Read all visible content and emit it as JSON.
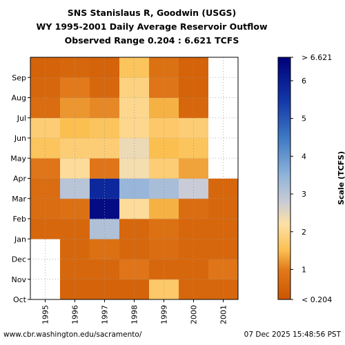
{
  "header": {
    "line1": "SNS Stanislaus R, Goodwin (USGS)",
    "line2": "WY 1995-2001 Daily Average Reservoir Outflow",
    "line3": "Observed Range 0.204 : 6.621 TCFS"
  },
  "footer": {
    "source": "www.cbr.washington.edu/sacramento/",
    "timestamp": "07 Dec 2025 15:48:56 PST"
  },
  "chart_data": {
    "type": "heatmap",
    "x_categories": [
      "1995",
      "1996",
      "1997",
      "1998",
      "1999",
      "2000",
      "2001"
    ],
    "y_ticks": [
      "Oct",
      "Nov",
      "Dec",
      "Jan",
      "Feb",
      "Mar",
      "Apr",
      "May",
      "Jun",
      "Jul",
      "Aug",
      "Sep"
    ],
    "colorbar": {
      "label": "Scale (TCFS)",
      "range": [
        0.204,
        6.621
      ],
      "ticks": [
        "< 0.204",
        "1",
        "2",
        "3",
        "4",
        "5",
        "6",
        "> 6.621"
      ],
      "stops": [
        {
          "v": 0.204,
          "c": "#cc5500"
        },
        {
          "v": 1.0,
          "c": "#e27a1b"
        },
        {
          "v": 1.5,
          "c": "#fbbf50"
        },
        {
          "v": 2.2,
          "c": "#fde0a6"
        },
        {
          "v": 2.8,
          "c": "#c9cbd6"
        },
        {
          "v": 3.5,
          "c": "#8fb3d9"
        },
        {
          "v": 4.5,
          "c": "#3d78c3"
        },
        {
          "v": 5.5,
          "c": "#1236a8"
        },
        {
          "v": 6.621,
          "c": "#00007a"
        }
      ]
    },
    "grid": true,
    "series": [
      {
        "wy": "1995",
        "months": [
          {
            "month": "Oct",
            "tcfs": null
          },
          {
            "month": "Nov",
            "tcfs": null
          },
          {
            "month": "Dec",
            "tcfs": null
          },
          {
            "month": "Jan",
            "tcfs": 0.6
          },
          {
            "month": "Feb",
            "tcfs": 0.7
          },
          {
            "month": "Mar",
            "tcfs": 0.7
          },
          {
            "month": "Apr",
            "tcfs": 0.9
          },
          {
            "month": "May",
            "tcfs": 1.6
          },
          {
            "month": "Jun",
            "tcfs": 1.8
          },
          {
            "month": "Jul",
            "tcfs": 0.7
          },
          {
            "month": "Aug",
            "tcfs": 0.6
          },
          {
            "month": "Sep",
            "tcfs": 0.5
          }
        ]
      },
      {
        "wy": "1996",
        "months": [
          {
            "month": "Oct",
            "tcfs": 0.5
          },
          {
            "month": "Nov",
            "tcfs": 0.6
          },
          {
            "month": "Dec",
            "tcfs": 0.6
          },
          {
            "month": "Jan",
            "tcfs": 0.6
          },
          {
            "month": "Feb",
            "tcfs": 0.8
          },
          {
            "month": "Mar",
            "tcfs": 3.0
          },
          {
            "month": "Apr",
            "tcfs": 2.1
          },
          {
            "month": "May",
            "tcfs": 1.8
          },
          {
            "month": "Jun",
            "tcfs": 1.5
          },
          {
            "month": "Jul",
            "tcfs": 1.2
          },
          {
            "month": "Aug",
            "tcfs": 1.0
          },
          {
            "month": "Sep",
            "tcfs": 0.6
          }
        ]
      },
      {
        "wy": "1997",
        "months": [
          {
            "month": "Oct",
            "tcfs": 0.5
          },
          {
            "month": "Nov",
            "tcfs": 0.6
          },
          {
            "month": "Dec",
            "tcfs": 0.8
          },
          {
            "month": "Jan",
            "tcfs": 3.1
          },
          {
            "month": "Feb",
            "tcfs": 6.4
          },
          {
            "month": "Mar",
            "tcfs": 5.8
          },
          {
            "month": "Apr",
            "tcfs": 0.9
          },
          {
            "month": "May",
            "tcfs": 1.8
          },
          {
            "month": "Jun",
            "tcfs": 1.6
          },
          {
            "month": "Jul",
            "tcfs": 1.1
          },
          {
            "month": "Aug",
            "tcfs": 0.6
          },
          {
            "month": "Sep",
            "tcfs": 0.5
          }
        ]
      },
      {
        "wy": "1998",
        "months": [
          {
            "month": "Oct",
            "tcfs": 0.5
          },
          {
            "month": "Nov",
            "tcfs": 0.9
          },
          {
            "month": "Dec",
            "tcfs": 0.6
          },
          {
            "month": "Jan",
            "tcfs": 0.6
          },
          {
            "month": "Feb",
            "tcfs": 2.1
          },
          {
            "month": "Mar",
            "tcfs": 3.4
          },
          {
            "month": "Apr",
            "tcfs": 2.3
          },
          {
            "month": "May",
            "tcfs": 2.4
          },
          {
            "month": "Jun",
            "tcfs": 2.0
          },
          {
            "month": "Jul",
            "tcfs": 2.0
          },
          {
            "month": "Aug",
            "tcfs": 1.9
          },
          {
            "month": "Sep",
            "tcfs": 1.6
          }
        ]
      },
      {
        "wy": "1999",
        "months": [
          {
            "month": "Oct",
            "tcfs": 1.7
          },
          {
            "month": "Nov",
            "tcfs": 0.6
          },
          {
            "month": "Dec",
            "tcfs": 0.7
          },
          {
            "month": "Jan",
            "tcfs": 0.8
          },
          {
            "month": "Feb",
            "tcfs": 1.4
          },
          {
            "month": "Mar",
            "tcfs": 3.2
          },
          {
            "month": "Apr",
            "tcfs": 1.8
          },
          {
            "month": "May",
            "tcfs": 1.5
          },
          {
            "month": "Jun",
            "tcfs": 1.7
          },
          {
            "month": "Jul",
            "tcfs": 1.4
          },
          {
            "month": "Aug",
            "tcfs": 0.9
          },
          {
            "month": "Sep",
            "tcfs": 0.8
          }
        ]
      },
      {
        "wy": "2000",
        "months": [
          {
            "month": "Oct",
            "tcfs": 0.6
          },
          {
            "month": "Nov",
            "tcfs": 0.6
          },
          {
            "month": "Dec",
            "tcfs": 0.6
          },
          {
            "month": "Jan",
            "tcfs": 0.6
          },
          {
            "month": "Feb",
            "tcfs": 0.7
          },
          {
            "month": "Mar",
            "tcfs": 2.8
          },
          {
            "month": "Apr",
            "tcfs": 1.3
          },
          {
            "month": "May",
            "tcfs": 1.6
          },
          {
            "month": "Jun",
            "tcfs": 1.8
          },
          {
            "month": "Jul",
            "tcfs": 0.6
          },
          {
            "month": "Aug",
            "tcfs": 0.5
          },
          {
            "month": "Sep",
            "tcfs": 0.5
          }
        ]
      },
      {
        "wy": "2001",
        "months": [
          {
            "month": "Oct",
            "tcfs": 0.6
          },
          {
            "month": "Nov",
            "tcfs": 0.9
          },
          {
            "month": "Dec",
            "tcfs": 0.6
          },
          {
            "month": "Jan",
            "tcfs": 0.6
          },
          {
            "month": "Feb",
            "tcfs": 0.6
          },
          {
            "month": "Mar",
            "tcfs": 0.6
          },
          {
            "month": "Apr",
            "tcfs": null
          },
          {
            "month": "May",
            "tcfs": null
          },
          {
            "month": "Jun",
            "tcfs": null
          },
          {
            "month": "Jul",
            "tcfs": null
          },
          {
            "month": "Aug",
            "tcfs": null
          },
          {
            "month": "Sep",
            "tcfs": null
          }
        ]
      }
    ]
  }
}
